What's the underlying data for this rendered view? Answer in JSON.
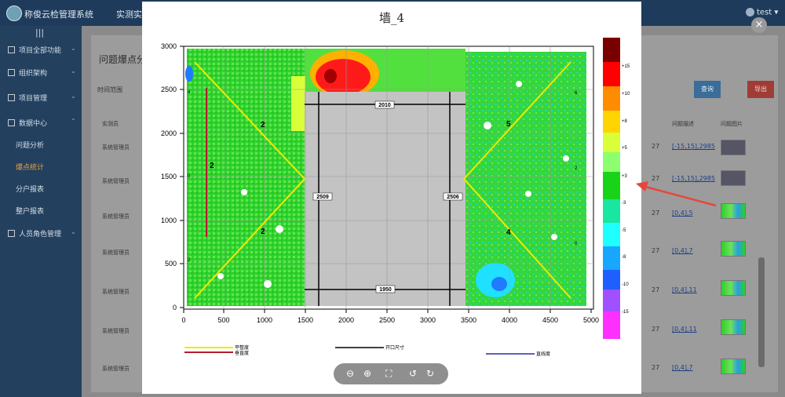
{
  "app": {
    "title": "称俊云检管理系统",
    "top_menu": "实测实量",
    "user": "test ▾"
  },
  "sidebar": {
    "toggle": "|||",
    "items": [
      {
        "label": "项目全部功能"
      },
      {
        "label": "组织架构"
      },
      {
        "label": "项目管理"
      },
      {
        "label": "数据中心"
      },
      {
        "label": "问题分析"
      },
      {
        "label": "爆点统计"
      },
      {
        "label": "分户报表"
      },
      {
        "label": "整户报表"
      },
      {
        "label": "人员角色管理"
      }
    ]
  },
  "page": {
    "title": "问题爆点分",
    "filter_label": "时间范围",
    "query_button": "查询",
    "export_button": "导出",
    "columns": [
      "实测员",
      "问题描述",
      "问题图片"
    ],
    "rows": [
      {
        "user": "系统管理员",
        "num": "27",
        "desc": "[-15,15],2985"
      },
      {
        "user": "系统管理员",
        "num": "27",
        "desc": "[-15,15],2985"
      },
      {
        "user": "系统管理员",
        "num": "27",
        "desc": "[0,4],5"
      },
      {
        "user": "系统管理员",
        "num": "27",
        "desc": "[0,4],7"
      },
      {
        "user": "系统管理员",
        "num": "27",
        "desc": "[0,4],11"
      },
      {
        "user": "系统管理员",
        "num": "27",
        "desc": "[0,4],11"
      },
      {
        "user": "系统管理员",
        "num": "27",
        "desc": "[0,4],7"
      }
    ]
  },
  "modal": {
    "title": "墙_4",
    "close": "×",
    "toolbar": {
      "zoom_out": "⊖",
      "zoom_in": "⊕",
      "fullscreen": "⛶",
      "rotate_left": "↺",
      "rotate_right": "↻"
    }
  },
  "plot": {
    "x_ticks": [
      "0",
      "500",
      "1000",
      "1500",
      "2000",
      "2500",
      "3000",
      "3500",
      "4000",
      "4500",
      "5000"
    ],
    "y_ticks": [
      "0",
      "500",
      "1000",
      "1500",
      "2000",
      "2500",
      "3000"
    ],
    "dimensions": {
      "top_width": "2010",
      "bottom_width": "1950",
      "left_height": "2509",
      "right_height": "2506"
    },
    "region_labels": [
      "2",
      "2",
      "2",
      "5",
      "4"
    ],
    "edge_marks": [
      "4",
      "0",
      "2",
      "6",
      "2",
      "0"
    ],
    "legend": {
      "flatness": "平整度",
      "verticality": "垂直度",
      "opening": "开口尺寸",
      "straightness": "直线度"
    },
    "colorbar_labels": [
      "+15",
      "+10",
      "+8",
      "+5",
      "+3",
      "-3",
      "-5",
      "-8",
      "-10",
      "-15"
    ],
    "colorbar_colors": [
      "#7a0000",
      "#ff0000",
      "#ff8c00",
      "#ffd400",
      "#d9ff3a",
      "#8cff6e",
      "#19d319",
      "#19e6a0",
      "#20ffff",
      "#19a6ff",
      "#1f5fff",
      "#a050ff",
      "#ff30ff"
    ]
  }
}
